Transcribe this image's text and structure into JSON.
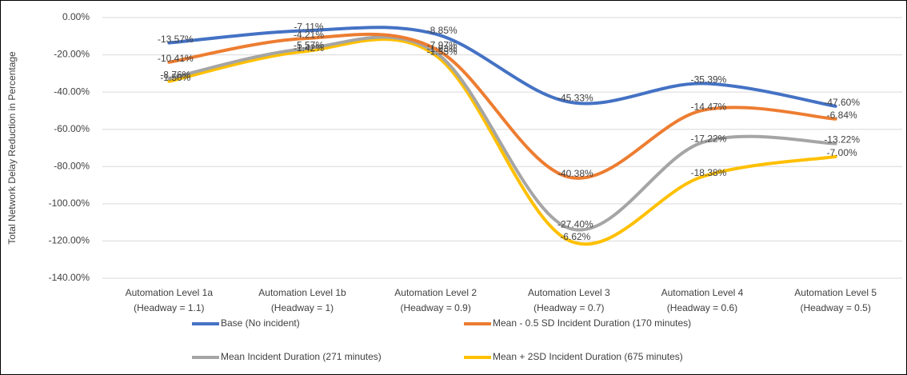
{
  "chart_data": {
    "type": "stacked_line",
    "y_label": "Total Network Delay Reduction in Percentage",
    "categories": [
      [
        "Automation Level 1a",
        "(Headway = 1.1)"
      ],
      [
        "Automation Level 1b",
        "(Headway = 1)"
      ],
      [
        "Automation Level 2",
        "(Headway = 0.9)"
      ],
      [
        "Automation Level 3",
        "(Headway = 0.7)"
      ],
      [
        "Automation Level 4",
        "(Headway = 0.6)"
      ],
      [
        "Automation Level 5",
        "(Headway = 0.5)"
      ]
    ],
    "series": [
      {
        "name": "Base (No incident)",
        "color": "#4472c4",
        "values": [
          -13.57,
          -7.11,
          -8.85,
          -45.33,
          -35.39,
          -47.6
        ],
        "value_labels": [
          "-13.57%",
          "-7.11%",
          "-8.85%",
          "-45.33%",
          "-35.39%",
          "-47.60%"
        ]
      },
      {
        "name": "Mean - 0.5 SD Incident Duration (170 minutes)",
        "color": "#ed7d31",
        "values": [
          -10.41,
          -4.21,
          -7.97,
          -40.38,
          -14.47,
          -6.84
        ],
        "value_labels": [
          "-10.41%",
          "-4.21%",
          "-7.97%",
          "-40.38%",
          "-14.47%",
          "-6.84%"
        ]
      },
      {
        "name": "Mean Incident Duration (271 minutes)",
        "color": "#a5a5a5",
        "values": [
          -8.76,
          -5.57,
          -1.93,
          -27.4,
          -17.22,
          -13.22
        ],
        "value_labels": [
          "-8.76%",
          "-5.57%",
          "-1.93%",
          "-27.40%",
          "-17.22%",
          "-13.22%"
        ]
      },
      {
        "name": "Mean + 2SD Incident Duration (675 minutes)",
        "color": "#ffc000",
        "values": [
          -1.5,
          -1.42,
          -1.55,
          -6.62,
          -18.38,
          -7.0
        ],
        "value_labels": [
          "-1.50%",
          "-1.42%",
          "-1.55%",
          "-6.62%",
          "-18.38%",
          "-7.00%"
        ]
      }
    ],
    "ylim": [
      -140,
      0
    ],
    "yticks": [
      {
        "value": 0,
        "label": "0.00%"
      },
      {
        "value": -20,
        "label": "-20.00%"
      },
      {
        "value": -40,
        "label": "-40.00%"
      },
      {
        "value": -60,
        "label": "-60.00%"
      },
      {
        "value": -80,
        "label": "-80.00%"
      },
      {
        "value": -100,
        "label": "-100.00%"
      },
      {
        "value": -120,
        "label": "-120.00%"
      },
      {
        "value": -140,
        "label": "-140.00%"
      }
    ],
    "grid": true
  }
}
